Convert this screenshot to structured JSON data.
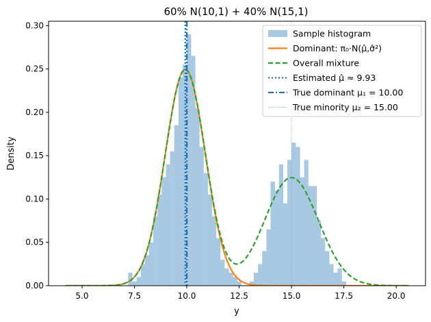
{
  "chart_data": {
    "type": "bar",
    "title": "60% N(10,1) + 40% N(15,1)",
    "xlabel": "y",
    "ylabel": "Density",
    "xlim": [
      3.4,
      21.4
    ],
    "ylim": [
      0,
      0.305
    ],
    "xticks": [
      5.0,
      7.5,
      10.0,
      12.5,
      15.0,
      17.5,
      20.0
    ],
    "xtick_labels": [
      "5.0",
      "7.5",
      "10.0",
      "12.5",
      "15.0",
      "17.5",
      "20.0"
    ],
    "yticks": [
      0,
      0.05,
      0.1,
      0.15,
      0.2,
      0.25,
      0.3
    ],
    "ytick_labels": [
      "0.00",
      "0.05",
      "0.10",
      "0.15",
      "0.20",
      "0.25",
      "0.30"
    ],
    "grid": false,
    "legend_position": "top-right",
    "histogram": {
      "name": "Sample histogram",
      "color": "#a9c9e3",
      "bin_width": 0.2,
      "bins": [
        [
          7.2,
          0.015
        ],
        [
          7.4,
          0.005
        ],
        [
          7.6,
          0.01
        ],
        [
          7.8,
          0.025
        ],
        [
          8.0,
          0.035
        ],
        [
          8.2,
          0.05
        ],
        [
          8.4,
          0.08
        ],
        [
          8.6,
          0.105
        ],
        [
          8.8,
          0.125
        ],
        [
          9.0,
          0.14
        ],
        [
          9.2,
          0.155
        ],
        [
          9.4,
          0.185
        ],
        [
          9.6,
          0.24
        ],
        [
          9.8,
          0.255
        ],
        [
          10.0,
          0.29
        ],
        [
          10.2,
          0.265
        ],
        [
          10.4,
          0.205
        ],
        [
          10.6,
          0.16
        ],
        [
          10.8,
          0.13
        ],
        [
          11.0,
          0.105
        ],
        [
          11.2,
          0.08
        ],
        [
          11.4,
          0.055
        ],
        [
          11.6,
          0.03
        ],
        [
          11.8,
          0.02
        ],
        [
          12.0,
          0.015
        ],
        [
          12.2,
          0.01
        ],
        [
          12.4,
          0.005
        ],
        [
          13.0,
          0.005
        ],
        [
          13.2,
          0.015
        ],
        [
          13.4,
          0.025
        ],
        [
          13.6,
          0.04
        ],
        [
          13.8,
          0.065
        ],
        [
          14.0,
          0.12
        ],
        [
          14.2,
          0.11
        ],
        [
          14.4,
          0.14
        ],
        [
          14.6,
          0.095
        ],
        [
          14.8,
          0.145
        ],
        [
          15.0,
          0.165
        ],
        [
          15.2,
          0.16
        ],
        [
          15.4,
          0.125
        ],
        [
          15.6,
          0.145
        ],
        [
          15.8,
          0.115
        ],
        [
          16.0,
          0.115
        ],
        [
          16.2,
          0.075
        ],
        [
          16.4,
          0.055
        ],
        [
          16.6,
          0.04
        ],
        [
          16.8,
          0.025
        ],
        [
          17.0,
          0.015
        ],
        [
          17.2,
          0.02
        ],
        [
          17.4,
          0.005
        ]
      ]
    },
    "series": [
      {
        "name": "Dominant: π₀·N(μ̂,σ̂²)",
        "color": "#ff7f0e",
        "style": "solid",
        "kind": "gaussian",
        "weight": 0.6,
        "mean": 9.93,
        "sd": 0.96,
        "x_range": [
          4.2,
          20.6
        ]
      },
      {
        "name": "Overall mixture",
        "color": "#2ca02c",
        "style": "dashed",
        "kind": "mixture",
        "components": [
          {
            "weight": 0.6,
            "mean": 9.93,
            "sd": 0.96
          },
          {
            "weight": 0.4,
            "mean": 15.0,
            "sd": 1.28
          }
        ],
        "x_range": [
          4.2,
          20.6
        ]
      }
    ],
    "vlines": [
      {
        "name": "Estimated μ̂ ≈ 9.93",
        "x": 9.93,
        "color": "#1f77b4",
        "style": "dotted"
      },
      {
        "name": "True dominant μ₁ = 10.00",
        "x": 10.0,
        "color": "#1f77b4",
        "style": "dashdot"
      },
      {
        "name": "True minority μ₂ = 15.00",
        "x": 15.0,
        "color": "#6baed6",
        "style": "thin-dotted"
      }
    ]
  }
}
